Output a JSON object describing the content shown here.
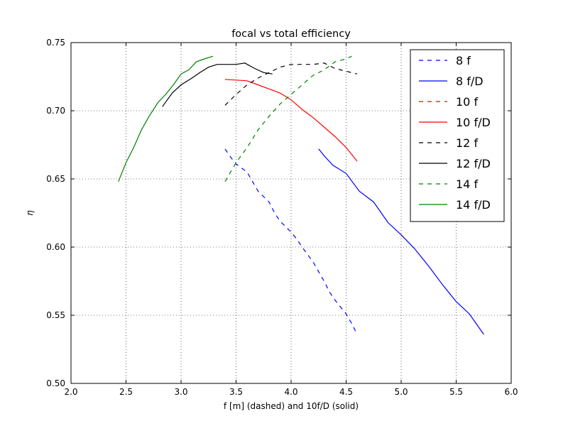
{
  "chart_data": {
    "type": "line",
    "title": "focal vs total efficiency",
    "xlabel": "f [m] (dashed) and 10f/D (solid)",
    "ylabel": "η",
    "xlim": [
      2.0,
      6.0
    ],
    "ylim": [
      0.5,
      0.75
    ],
    "xticks": [
      "2.0",
      "2.5",
      "3.0",
      "3.5",
      "4.0",
      "4.5",
      "5.0",
      "5.5",
      "6.0"
    ],
    "yticks": [
      "0.50",
      "0.55",
      "0.60",
      "0.65",
      "0.70",
      "0.75"
    ],
    "grid": true,
    "legend_position": "top-right",
    "series": [
      {
        "name": "8 f",
        "color": "#0000ff",
        "dashed": true,
        "x": [
          3.4,
          3.45,
          3.5,
          3.6,
          3.65,
          3.7,
          3.8,
          3.85,
          3.9,
          4.0,
          4.05,
          4.1,
          4.2,
          4.25,
          4.3,
          4.35,
          4.4,
          4.5,
          4.55,
          4.6
        ],
        "y": [
          0.672,
          0.666,
          0.661,
          0.655,
          0.648,
          0.641,
          0.633,
          0.625,
          0.619,
          0.611,
          0.606,
          0.6,
          0.589,
          0.582,
          0.575,
          0.567,
          0.561,
          0.551,
          0.544,
          0.536
        ]
      },
      {
        "name": "8 f/D",
        "color": "#0000ff",
        "dashed": false,
        "x": [
          4.25,
          4.3,
          4.38,
          4.5,
          4.62,
          4.75,
          4.88,
          5.0,
          5.12,
          5.25,
          5.38,
          5.5,
          5.62,
          5.75
        ],
        "y": [
          0.672,
          0.667,
          0.66,
          0.654,
          0.641,
          0.633,
          0.618,
          0.609,
          0.599,
          0.586,
          0.572,
          0.56,
          0.551,
          0.536
        ]
      },
      {
        "name": "10 f",
        "color": "#ff0000",
        "dashed": true,
        "x": [],
        "y": []
      },
      {
        "name": "10 f/D",
        "color": "#ff0000",
        "dashed": false,
        "x": [
          3.4,
          3.5,
          3.6,
          3.7,
          3.8,
          3.9,
          4.0,
          4.1,
          4.2,
          4.3,
          4.4,
          4.5,
          4.6
        ],
        "y": [
          0.723,
          0.7225,
          0.722,
          0.719,
          0.716,
          0.713,
          0.708,
          0.701,
          0.695,
          0.688,
          0.681,
          0.673,
          0.663
        ]
      },
      {
        "name": "12 f",
        "color": "#000000",
        "dashed": true,
        "x": [
          3.4,
          3.5,
          3.6,
          3.7,
          3.8,
          3.9,
          4.0,
          4.1,
          4.2,
          4.3,
          4.35,
          4.4,
          4.5,
          4.6
        ],
        "y": [
          0.704,
          0.712,
          0.719,
          0.724,
          0.728,
          0.732,
          0.734,
          0.734,
          0.734,
          0.735,
          0.733,
          0.731,
          0.729,
          0.727
        ]
      },
      {
        "name": "12 f/D",
        "color": "#000000",
        "dashed": false,
        "x": [
          2.83,
          2.92,
          3.0,
          3.1,
          3.17,
          3.25,
          3.33,
          3.42,
          3.5,
          3.58,
          3.67,
          3.75,
          3.83
        ],
        "y": [
          0.703,
          0.713,
          0.719,
          0.724,
          0.728,
          0.732,
          0.734,
          0.734,
          0.734,
          0.735,
          0.731,
          0.728,
          0.727
        ]
      },
      {
        "name": "14 f",
        "color": "#008000",
        "dashed": true,
        "x": [
          3.4,
          3.5,
          3.6,
          3.7,
          3.8,
          3.9,
          4.0,
          4.1,
          4.2,
          4.3,
          4.4,
          4.5,
          4.55
        ],
        "y": [
          0.648,
          0.662,
          0.673,
          0.686,
          0.696,
          0.705,
          0.712,
          0.719,
          0.726,
          0.73,
          0.736,
          0.738,
          0.74
        ]
      },
      {
        "name": "14 f/D",
        "color": "#008000",
        "dashed": false,
        "x": [
          2.43,
          2.5,
          2.57,
          2.64,
          2.71,
          2.79,
          2.86,
          2.93,
          3.0,
          3.07,
          3.14,
          3.21,
          3.29
        ],
        "y": [
          0.648,
          0.662,
          0.673,
          0.686,
          0.696,
          0.706,
          0.712,
          0.719,
          0.727,
          0.73,
          0.736,
          0.738,
          0.74
        ]
      }
    ]
  }
}
